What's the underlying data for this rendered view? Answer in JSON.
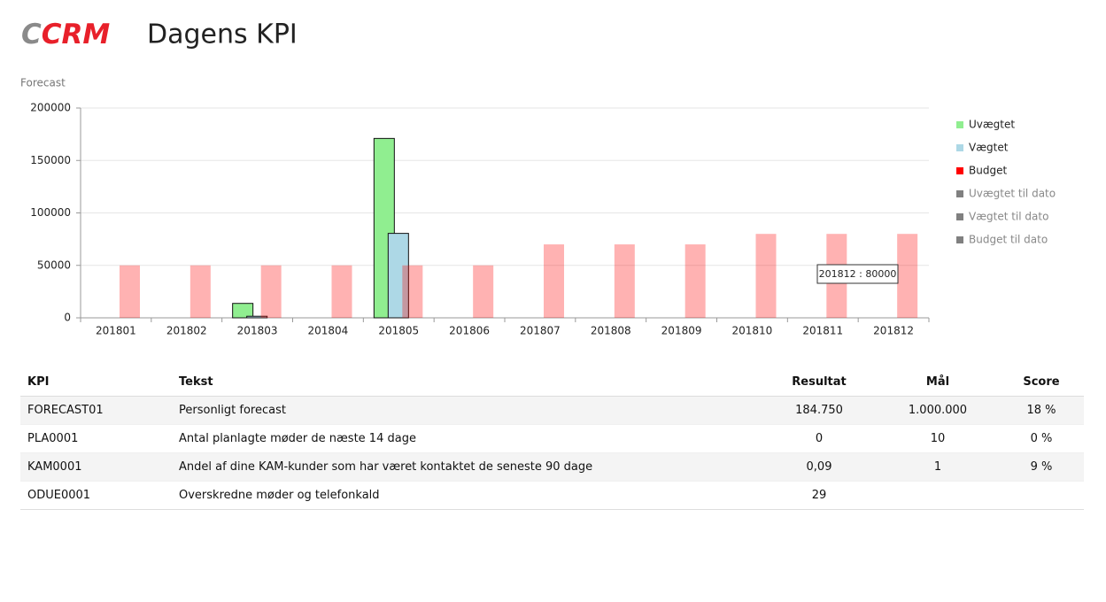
{
  "header": {
    "logo_c": "C",
    "logo_crm": "CRM",
    "title": "Dagens KPI"
  },
  "chart_data": {
    "type": "bar",
    "title": "Forecast",
    "categories": [
      "201801",
      "201802",
      "201803",
      "201804",
      "201805",
      "201806",
      "201807",
      "201808",
      "201809",
      "201810",
      "201811",
      "201812"
    ],
    "series": [
      {
        "name": "Uvægtet",
        "color": "#90ee90",
        "values": [
          0,
          0,
          13750,
          0,
          171000,
          0,
          0,
          0,
          0,
          0,
          0,
          0
        ]
      },
      {
        "name": "Vægtet",
        "color": "#add8e6",
        "values": [
          0,
          0,
          1500,
          0,
          80500,
          0,
          0,
          0,
          0,
          0,
          0,
          0
        ]
      },
      {
        "name": "Budget",
        "color": "#ff0000",
        "opacity": 0.3,
        "values": [
          50000,
          50000,
          50000,
          50000,
          50000,
          50000,
          70000,
          70000,
          70000,
          80000,
          80000,
          80000
        ]
      },
      {
        "name": "Uvægtet til dato",
        "color": "#808080",
        "hidden": true,
        "values": [
          null,
          null,
          null,
          null,
          null,
          null,
          null,
          null,
          null,
          null,
          null,
          null
        ]
      },
      {
        "name": "Vægtet til dato",
        "color": "#808080",
        "hidden": true,
        "values": [
          null,
          null,
          null,
          null,
          null,
          null,
          null,
          null,
          null,
          null,
          null,
          null
        ]
      },
      {
        "name": "Budget til dato",
        "color": "#808080",
        "hidden": true,
        "values": [
          null,
          null,
          null,
          null,
          null,
          null,
          null,
          null,
          null,
          null,
          null,
          null
        ]
      }
    ],
    "ylim": [
      0,
      200000
    ],
    "yticks": [
      0,
      50000,
      100000,
      150000,
      200000
    ],
    "grid": true,
    "legend": "right",
    "tooltip": "201812 : 80000"
  },
  "table": {
    "headers": [
      "KPI",
      "Tekst",
      "Resultat",
      "Mål",
      "Score"
    ],
    "rows": [
      [
        "FORECAST01",
        "Personligt forecast",
        "184.750",
        "1.000.000",
        "18 %"
      ],
      [
        "PLA0001",
        "Antal planlagte møder de næste 14 dage",
        "0",
        "10",
        "0 %"
      ],
      [
        "KAM0001",
        "Andel af dine KAM-kunder som har været kontaktet de seneste 90 dage",
        "0,09",
        "1",
        "9 %"
      ],
      [
        "ODUE0001",
        "Overskredne møder og telefonkald",
        "29"
      ]
    ]
  }
}
